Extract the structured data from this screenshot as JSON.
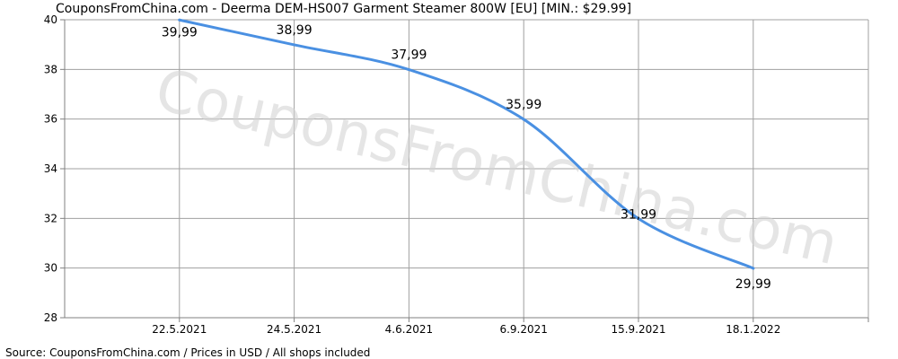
{
  "title": "CouponsFromChina.com - Deerma DEM-HS007 Garment Steamer 800W [EU] [MIN.: $29.99]",
  "source": "Source: CouponsFromChina.com / Prices in USD / All shops included",
  "watermark": "CouponsFromChina.com",
  "colors": {
    "line": "#4a90e2",
    "grid": "#a0a0a0",
    "axis": "#808080",
    "plot_bg": "#ffffff"
  },
  "chart_data": {
    "type": "line",
    "title": "CouponsFromChina.com - Deerma DEM-HS007 Garment Steamer 800W [EU] [MIN.: $29.99]",
    "xlabel": "",
    "ylabel": "",
    "categories": [
      "22.5.2021",
      "24.5.2021",
      "4.6.2021",
      "6.9.2021",
      "15.9.2021",
      "18.1.2022"
    ],
    "values": [
      39.99,
      38.99,
      37.99,
      35.99,
      31.99,
      29.99
    ],
    "data_labels": [
      "39,99",
      "38,99",
      "37,99",
      "35,99",
      "31,99",
      "29,99"
    ],
    "yticks": [
      28,
      30,
      32,
      34,
      36,
      38,
      40
    ],
    "ylim": [
      28,
      40
    ],
    "grid": true,
    "legend": "none",
    "smooth": true
  }
}
